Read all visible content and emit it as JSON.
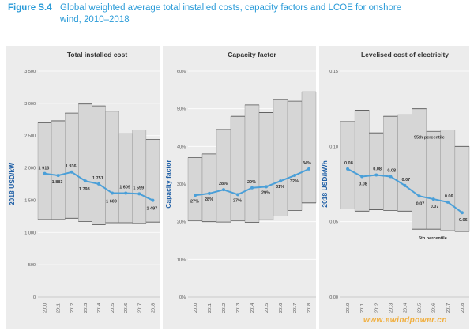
{
  "figure": {
    "label": "Figure S.4",
    "title_line1": "Global weighted average total installed costs, capacity factors and LCOE for onshore",
    "title_line2": "wind, 2010–2018"
  },
  "watermark": "www.ewindpower.cn",
  "colors": {
    "title": "#2a9bd8",
    "axis_label": "#1f5fa6",
    "line": "#4a9fd8",
    "band": "#d6d6d6",
    "panel_bg": "#ececec"
  },
  "chart_data": [
    {
      "type": "line",
      "title": "Total installed cost",
      "ylabel": "2018 USD/kW",
      "x": [
        "2010",
        "2011",
        "2012",
        "2013",
        "2014",
        "2015",
        "2016",
        "2017",
        "2018"
      ],
      "ylim": [
        0,
        3500
      ],
      "yticks": [
        0,
        500,
        1000,
        1500,
        2000,
        2500,
        3000,
        3500
      ],
      "ytick_labels": [
        "0",
        "500",
        "1 000",
        "1 500",
        "2 000",
        "2 500",
        "3 000",
        "3 500"
      ],
      "series": [
        {
          "values": [
            1913,
            1883,
            1936,
            1798,
            1751,
            1609,
            1609,
            1599,
            1497
          ]
        }
      ],
      "data_labels": [
        "1 913",
        "1 883",
        "1 936",
        "1 798",
        "1 751",
        "1 609",
        "1 609",
        "1 599",
        "1 497"
      ],
      "band_low": [
        1200,
        1200,
        1220,
        1170,
        1120,
        1150,
        1150,
        1140,
        1160
      ],
      "band_high": [
        2700,
        2730,
        2850,
        2990,
        2960,
        2880,
        2530,
        2590,
        2440
      ]
    },
    {
      "type": "line",
      "title": "Capacity factor",
      "ylabel": "Capacity factor",
      "x": [
        "2010",
        "2011",
        "2012",
        "2013",
        "2014",
        "2015",
        "2016",
        "2017",
        "2018"
      ],
      "ylim": [
        0,
        60
      ],
      "yticks": [
        0,
        10,
        20,
        30,
        40,
        50,
        60
      ],
      "ytick_labels": [
        "0%",
        "10%",
        "20%",
        "30%",
        "40%",
        "50%",
        "60%"
      ],
      "series": [
        {
          "values": [
            27,
            27.5,
            28.5,
            27.2,
            29,
            29.3,
            30.8,
            32.3,
            34
          ]
        }
      ],
      "data_labels": [
        "27%",
        "28%",
        "28%",
        "27%",
        "29%",
        "29%",
        "31%",
        "32%",
        "34%"
      ],
      "band_low": [
        20.2,
        20.0,
        19.9,
        20.2,
        19.8,
        20.5,
        21.5,
        23.0,
        25.0
      ],
      "band_high": [
        37.0,
        38.0,
        44.5,
        48.0,
        51.0,
        49.0,
        52.5,
        52.0,
        54.5
      ]
    },
    {
      "type": "line",
      "title": "Levelised cost of electricity",
      "ylabel": "2018 USD/kWh",
      "x": [
        "2010",
        "2011",
        "2012",
        "2013",
        "2014",
        "2015",
        "2016",
        "2017",
        "2018"
      ],
      "ylim": [
        0,
        0.15
      ],
      "yticks": [
        0,
        0.05,
        0.1,
        0.15
      ],
      "ytick_labels": [
        "0.00",
        "0.05",
        "0.10",
        "0.15"
      ],
      "series": [
        {
          "values": [
            0.085,
            0.08,
            0.081,
            0.08,
            0.074,
            0.067,
            0.065,
            0.063,
            0.056
          ]
        }
      ],
      "data_labels": [
        "0.08",
        "0.08",
        "0.08",
        "0.08",
        "0.07",
        "0.07",
        "0.07",
        "0.06",
        "0.06"
      ],
      "band_low": [
        0.0585,
        0.057,
        0.058,
        0.0575,
        0.057,
        0.045,
        0.045,
        0.044,
        0.0435
      ],
      "band_high": [
        0.1165,
        0.124,
        0.109,
        0.12,
        0.121,
        0.125,
        0.11,
        0.111,
        0.1
      ],
      "annotations": [
        "95th percentile",
        "5th percentile"
      ]
    }
  ]
}
